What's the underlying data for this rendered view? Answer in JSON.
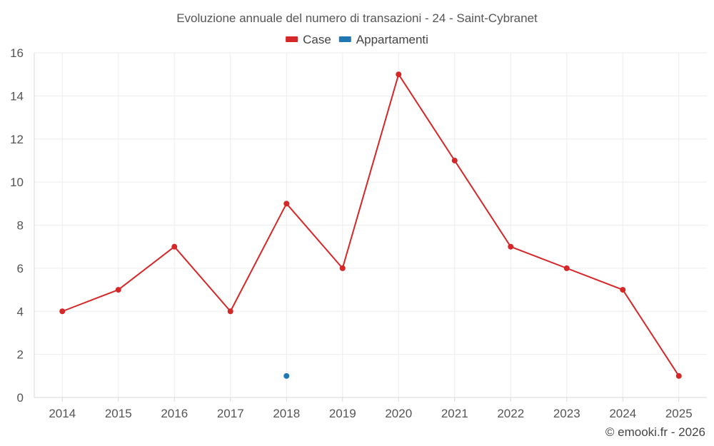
{
  "chart_data": {
    "type": "line",
    "title": "Evoluzione annuale del numero di transazioni - 24 - Saint-Cybranet",
    "xlabel": "",
    "ylabel": "",
    "categories": [
      "2014",
      "2015",
      "2016",
      "2017",
      "2018",
      "2019",
      "2020",
      "2021",
      "2022",
      "2023",
      "2024",
      "2025"
    ],
    "ylim": [
      0,
      16
    ],
    "yticks": [
      0,
      2,
      4,
      6,
      8,
      10,
      12,
      14,
      16
    ],
    "grid": true,
    "legend_position": "top-center",
    "series": [
      {
        "name": "Case",
        "color": "#d62728",
        "values": [
          4,
          5,
          7,
          4,
          9,
          6,
          15,
          11,
          7,
          6,
          5,
          1
        ]
      },
      {
        "name": "Appartamenti",
        "color": "#1f77b4",
        "values": [
          null,
          null,
          null,
          null,
          1,
          null,
          null,
          null,
          null,
          null,
          null,
          null
        ]
      }
    ]
  },
  "credit": "© emooki.fr - 2026"
}
